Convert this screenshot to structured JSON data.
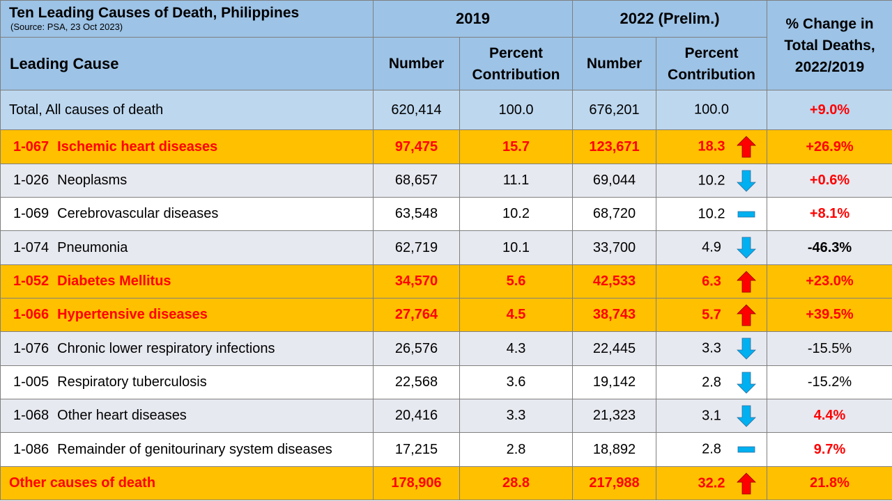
{
  "title": "Ten Leading Causes of Death, Philippines",
  "source": "(Source:  PSA, 23 Oct 2023)",
  "headers": {
    "year1": "2019",
    "year2": "2022 (Prelim.)",
    "leading_cause": "Leading Cause",
    "number": "Number",
    "pct_contrib_line1": "Percent",
    "pct_contrib_line2": "Contribution",
    "change_line1": "% Change in",
    "change_line2": "Total Deaths,",
    "change_line3": "2022/2019"
  },
  "colors": {
    "header_blue": "#9dc3e6",
    "total_blue": "#bdd7ee",
    "highlight_orange": "#ffc000",
    "band_gray": "#e7e9f0",
    "increase_red": "#ff0000",
    "decrease_blue": "#00b0f0"
  },
  "rows": [
    {
      "code": "",
      "cause": "Total, All causes of death",
      "n2019": "620,414",
      "p2019": "100.0",
      "n2022": "676,201",
      "p2022": "100.0",
      "trend": "",
      "change": "+9.0%"
    },
    {
      "code": "1-067",
      "cause": "Ischemic heart diseases",
      "n2019": "97,475",
      "p2019": "15.7",
      "n2022": "123,671",
      "p2022": "18.3",
      "trend": "up",
      "change": "+26.9%"
    },
    {
      "code": "1-026",
      "cause": "Neoplasms",
      "n2019": "68,657",
      "p2019": "11.1",
      "n2022": "69,044",
      "p2022": "10.2",
      "trend": "down",
      "change": "+0.6%"
    },
    {
      "code": "1-069",
      "cause": "Cerebrovascular diseases",
      "n2019": "63,548",
      "p2019": "10.2",
      "n2022": "68,720",
      "p2022": "10.2",
      "trend": "same",
      "change": "+8.1%"
    },
    {
      "code": "1-074",
      "cause": "Pneumonia",
      "n2019": "62,719",
      "p2019": "10.1",
      "n2022": "33,700",
      "p2022": "4.9",
      "trend": "down",
      "change": "-46.3%"
    },
    {
      "code": "1-052",
      "cause": "Diabetes Mellitus",
      "n2019": "34,570",
      "p2019": "5.6",
      "n2022": "42,533",
      "p2022": "6.3",
      "trend": "up",
      "change": "+23.0%"
    },
    {
      "code": "1-066",
      "cause": "Hypertensive diseases",
      "n2019": "27,764",
      "p2019": "4.5",
      "n2022": "38,743",
      "p2022": "5.7",
      "trend": "up",
      "change": "+39.5%"
    },
    {
      "code": "1-076",
      "cause": "Chronic lower respiratory infections",
      "n2019": "26,576",
      "p2019": "4.3",
      "n2022": "22,445",
      "p2022": "3.3",
      "trend": "down",
      "change": "-15.5%"
    },
    {
      "code": "1-005",
      "cause": "Respiratory tuberculosis",
      "n2019": "22,568",
      "p2019": "3.6",
      "n2022": "19,142",
      "p2022": "2.8",
      "trend": "down",
      "change": "-15.2%"
    },
    {
      "code": "1-068",
      "cause": "Other heart diseases",
      "n2019": "20,416",
      "p2019": "3.3",
      "n2022": "21,323",
      "p2022": "3.1",
      "trend": "down",
      "change": "4.4%"
    },
    {
      "code": "1-086",
      "cause": "Remainder of genitourinary system diseases",
      "n2019": "17,215",
      "p2019": "2.8",
      "n2022": "18,892",
      "p2022": "2.8",
      "trend": "same",
      "change": "9.7%"
    },
    {
      "code": "",
      "cause": "Other causes of death",
      "n2019": "178,906",
      "p2019": "28.8",
      "n2022": "217,988",
      "p2022": "32.2",
      "trend": "up",
      "change": "21.8%"
    }
  ]
}
